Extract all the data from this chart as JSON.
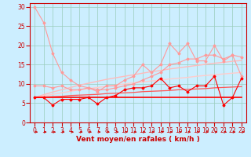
{
  "title": "",
  "xlabel": "Vent moyen/en rafales ( km/h )",
  "background_color": "#cceeff",
  "grid_color": "#99ccbb",
  "x": [
    0,
    1,
    2,
    3,
    4,
    5,
    6,
    7,
    8,
    9,
    10,
    11,
    12,
    13,
    14,
    15,
    16,
    17,
    18,
    19,
    20,
    21,
    22,
    23
  ],
  "series": [
    {
      "name": "pink_drop",
      "color": "#ff9999",
      "linewidth": 0.8,
      "marker": "D",
      "markersize": 1.5,
      "y": [
        30,
        26,
        18,
        13,
        11,
        9.5,
        9.0,
        8.5,
        8.5,
        9.0,
        9.5,
        10.0,
        11.0,
        12.0,
        13.0,
        15.0,
        15.5,
        16.5,
        16.5,
        17.5,
        17.5,
        16.5,
        17.5,
        17.0
      ]
    },
    {
      "name": "pink_zigzag",
      "color": "#ff9999",
      "linewidth": 0.8,
      "marker": "D",
      "markersize": 1.5,
      "y": [
        9.5,
        9.5,
        9.0,
        9.5,
        8.5,
        8.5,
        9.0,
        8.0,
        9.5,
        9.5,
        11.0,
        12.0,
        15.0,
        13.0,
        15.0,
        20.5,
        18.0,
        20.5,
        16.0,
        16.0,
        20.0,
        16.0,
        17.5,
        12.0
      ]
    },
    {
      "name": "pink_trend_upper",
      "color": "#ffbbbb",
      "linewidth": 1.0,
      "y": [
        6.5,
        7.2,
        7.9,
        8.5,
        9.1,
        9.7,
        10.2,
        10.7,
        11.2,
        11.6,
        12.0,
        12.4,
        12.8,
        13.2,
        13.5,
        13.9,
        14.2,
        14.5,
        14.8,
        15.1,
        15.4,
        15.6,
        15.9,
        16.1
      ]
    },
    {
      "name": "pink_trend_lower",
      "color": "#ffcccc",
      "linewidth": 1.0,
      "y": [
        6.5,
        6.9,
        7.3,
        7.7,
        8.1,
        8.5,
        8.8,
        9.1,
        9.4,
        9.7,
        10.0,
        10.3,
        10.5,
        10.8,
        11.0,
        11.3,
        11.5,
        11.7,
        12.0,
        12.2,
        12.4,
        12.6,
        12.8,
        13.0
      ]
    },
    {
      "name": "red_zigzag",
      "color": "#ff0000",
      "linewidth": 0.8,
      "marker": "D",
      "markersize": 1.5,
      "y": [
        6.5,
        6.5,
        4.5,
        6.0,
        6.0,
        6.0,
        6.5,
        4.8,
        6.5,
        7.0,
        8.5,
        9.0,
        9.0,
        9.5,
        11.5,
        9.0,
        9.5,
        8.0,
        9.5,
        9.5,
        12.0,
        4.5,
        6.5,
        11.5
      ]
    },
    {
      "name": "red_horizontal",
      "color": "#ff0000",
      "linewidth": 1.2,
      "y": [
        6.5,
        6.5,
        6.5,
        6.5,
        6.5,
        6.5,
        6.5,
        6.5,
        6.5,
        6.5,
        6.5,
        6.5,
        6.5,
        6.5,
        6.5,
        6.5,
        6.5,
        6.5,
        6.5,
        6.5,
        6.5,
        6.5,
        6.5,
        6.5
      ]
    },
    {
      "name": "red_trend",
      "color": "#ff5555",
      "linewidth": 0.9,
      "y": [
        6.5,
        6.6,
        6.7,
        6.8,
        7.0,
        7.1,
        7.2,
        7.3,
        7.5,
        7.6,
        7.7,
        7.8,
        8.0,
        8.1,
        8.2,
        8.3,
        8.5,
        8.6,
        8.7,
        8.8,
        9.0,
        9.1,
        9.2,
        9.3
      ]
    }
  ],
  "xlim": [
    -0.5,
    23.5
  ],
  "ylim": [
    0,
    31
  ],
  "yticks": [
    0,
    5,
    10,
    15,
    20,
    25,
    30
  ],
  "xticks": [
    0,
    1,
    2,
    3,
    4,
    5,
    6,
    7,
    8,
    9,
    10,
    11,
    12,
    13,
    14,
    15,
    16,
    17,
    18,
    19,
    20,
    21,
    22,
    23
  ],
  "xlabel_fontsize": 6.5,
  "tick_fontsize": 5.5,
  "arrow_color": "#cc0000",
  "spine_color": "#cc0000"
}
